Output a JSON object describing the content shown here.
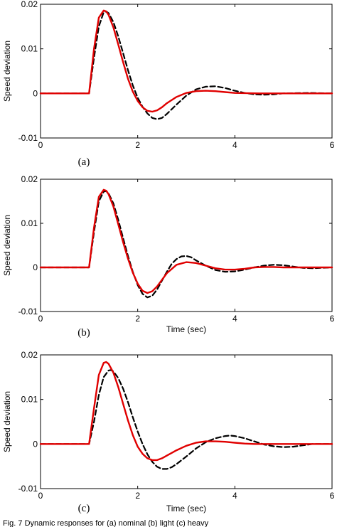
{
  "chart_data": [
    {
      "type": "line",
      "panel_label": "(a)",
      "xlabel": "",
      "ylabel": "Speed deviation",
      "xlim": [
        0,
        6
      ],
      "ylim": [
        -0.01,
        0.02
      ],
      "xticks": [
        "0",
        "2",
        "4",
        "6"
      ],
      "yticks": [
        "-0.01",
        "0",
        "0.01",
        "0.02"
      ],
      "grid": false,
      "series": [
        {
          "style": "dashed",
          "color": "#000000",
          "x": [
            0,
            1.0,
            1.1,
            1.2,
            1.3,
            1.35,
            1.4,
            1.5,
            1.6,
            1.7,
            1.8,
            1.9,
            2.0,
            2.1,
            2.2,
            2.3,
            2.4,
            2.5,
            2.6,
            2.8,
            3.0,
            3.2,
            3.4,
            3.6,
            3.8,
            4.0,
            4.2,
            4.4,
            4.6,
            4.8,
            5.0,
            5.5,
            6.0
          ],
          "y": [
            0,
            0,
            0.008,
            0.015,
            0.0182,
            0.0184,
            0.018,
            0.016,
            0.0128,
            0.009,
            0.0052,
            0.0018,
            -0.001,
            -0.003,
            -0.0045,
            -0.0055,
            -0.0058,
            -0.0055,
            -0.0046,
            -0.0025,
            -0.0005,
            0.0009,
            0.0015,
            0.0016,
            0.0012,
            0.0006,
            0.0001,
            -0.0002,
            -0.0003,
            -0.0002,
            0,
            0.0001,
            0
          ]
        },
        {
          "style": "solid",
          "color": "#e00000",
          "x": [
            0,
            1.0,
            1.1,
            1.2,
            1.3,
            1.35,
            1.4,
            1.5,
            1.6,
            1.7,
            1.8,
            1.9,
            2.0,
            2.1,
            2.2,
            2.3,
            2.4,
            2.5,
            2.6,
            2.8,
            3.0,
            3.2,
            3.4,
            3.6,
            3.8,
            4.0,
            4.5,
            5.0,
            5.5,
            6.0
          ],
          "y": [
            0,
            0,
            0.01,
            0.017,
            0.0186,
            0.0184,
            0.0176,
            0.0148,
            0.011,
            0.007,
            0.0033,
            0.0004,
            -0.0017,
            -0.0031,
            -0.0039,
            -0.0041,
            -0.0038,
            -0.0031,
            -0.0022,
            -0.0008,
            0.0001,
            0.0005,
            0.0006,
            0.0005,
            0.0003,
            0.0001,
            0,
            0,
            0,
            0
          ]
        }
      ]
    },
    {
      "type": "line",
      "panel_label": "(b)",
      "xlabel": "Time (sec)",
      "ylabel": "Speed deviation",
      "xlim": [
        0,
        6
      ],
      "ylim": [
        -0.01,
        0.02
      ],
      "xticks": [
        "0",
        "2",
        "4",
        "6"
      ],
      "yticks": [
        "-0.01",
        "0",
        "0.01",
        "0.02"
      ],
      "grid": false,
      "series": [
        {
          "style": "dashed",
          "color": "#000000",
          "x": [
            0,
            1.0,
            1.1,
            1.2,
            1.3,
            1.35,
            1.4,
            1.5,
            1.6,
            1.7,
            1.8,
            1.9,
            2.0,
            2.1,
            2.2,
            2.3,
            2.4,
            2.5,
            2.6,
            2.7,
            2.8,
            2.9,
            3.0,
            3.1,
            3.2,
            3.4,
            3.6,
            3.8,
            4.0,
            4.2,
            4.4,
            4.6,
            4.8,
            5.0,
            5.2,
            5.4,
            5.6,
            6.0
          ],
          "y": [
            0,
            0,
            0.008,
            0.015,
            0.0172,
            0.0173,
            0.0168,
            0.0145,
            0.0108,
            0.0066,
            0.0026,
            -0.001,
            -0.004,
            -0.006,
            -0.0068,
            -0.0064,
            -0.005,
            -0.003,
            -0.001,
            0.0008,
            0.0019,
            0.0025,
            0.0026,
            0.0023,
            0.0016,
            0.0004,
            -0.0006,
            -0.001,
            -0.0009,
            -0.0005,
            0,
            0.0004,
            0.0006,
            0.0005,
            0.0002,
            -0.0001,
            -0.0002,
            0
          ]
        },
        {
          "style": "solid",
          "color": "#e00000",
          "x": [
            0,
            1.0,
            1.1,
            1.2,
            1.3,
            1.35,
            1.4,
            1.5,
            1.6,
            1.7,
            1.8,
            1.9,
            2.0,
            2.1,
            2.2,
            2.3,
            2.4,
            2.5,
            2.6,
            2.8,
            3.0,
            3.2,
            3.4,
            3.6,
            3.8,
            4.0,
            4.2,
            4.4,
            4.6,
            4.8,
            5.0,
            5.5,
            6.0
          ],
          "y": [
            0,
            0,
            0.009,
            0.016,
            0.0176,
            0.0174,
            0.0166,
            0.0138,
            0.0098,
            0.0057,
            0.002,
            -0.0012,
            -0.0037,
            -0.0053,
            -0.0058,
            -0.0054,
            -0.0043,
            -0.0028,
            -0.0013,
            0.0006,
            0.0012,
            0.001,
            0.0004,
            -0.0002,
            -0.0005,
            -0.0005,
            -0.0003,
            0,
            0.0001,
            0.0001,
            0,
            0,
            0
          ]
        }
      ]
    },
    {
      "type": "line",
      "panel_label": "(c)",
      "xlabel": "Time (sec)",
      "ylabel": "Speed deviation",
      "xlim": [
        0,
        6
      ],
      "ylim": [
        -0.01,
        0.02
      ],
      "xticks": [
        "0",
        "2",
        "4",
        "6"
      ],
      "yticks": [
        "-0.01",
        "0",
        "0.01",
        "0.02"
      ],
      "grid": false,
      "series": [
        {
          "style": "dashed",
          "color": "#000000",
          "x": [
            0,
            1.0,
            1.1,
            1.2,
            1.3,
            1.4,
            1.45,
            1.5,
            1.6,
            1.7,
            1.8,
            1.9,
            2.0,
            2.1,
            2.2,
            2.3,
            2.4,
            2.5,
            2.6,
            2.7,
            2.8,
            3.0,
            3.2,
            3.4,
            3.6,
            3.8,
            3.9,
            4.0,
            4.2,
            4.4,
            4.6,
            4.8,
            5.0,
            5.2,
            5.4,
            5.6,
            6.0
          ],
          "y": [
            0,
            0,
            0.005,
            0.011,
            0.015,
            0.0165,
            0.0166,
            0.0163,
            0.0148,
            0.0124,
            0.0094,
            0.006,
            0.0028,
            0.0,
            -0.0023,
            -0.004,
            -0.0051,
            -0.0056,
            -0.0056,
            -0.0052,
            -0.0045,
            -0.0028,
            -0.001,
            0.0004,
            0.0013,
            0.0018,
            0.0019,
            0.0018,
            0.0013,
            0.0006,
            -0.0001,
            -0.0005,
            -0.0007,
            -0.0006,
            -0.0003,
            0,
            0
          ]
        },
        {
          "style": "solid",
          "color": "#e00000",
          "x": [
            0,
            1.0,
            1.1,
            1.2,
            1.3,
            1.35,
            1.4,
            1.5,
            1.6,
            1.7,
            1.8,
            1.9,
            2.0,
            2.1,
            2.2,
            2.3,
            2.4,
            2.5,
            2.6,
            2.8,
            3.0,
            3.2,
            3.4,
            3.6,
            3.8,
            4.0,
            4.2,
            4.4,
            4.6,
            5.0,
            5.5,
            6.0
          ],
          "y": [
            0,
            0,
            0.008,
            0.0155,
            0.0182,
            0.0184,
            0.018,
            0.016,
            0.0128,
            0.009,
            0.0053,
            0.002,
            -0.0006,
            -0.0022,
            -0.0032,
            -0.0036,
            -0.0036,
            -0.0032,
            -0.0026,
            -0.0014,
            -0.0004,
            0.0003,
            0.0006,
            0.0006,
            0.0005,
            0.0003,
            0.0001,
            0,
            0,
            0,
            0,
            0
          ]
        }
      ]
    }
  ],
  "caption": "Fig. 7 Dynamic responses for (a) nominal (b) light (c) heavy"
}
